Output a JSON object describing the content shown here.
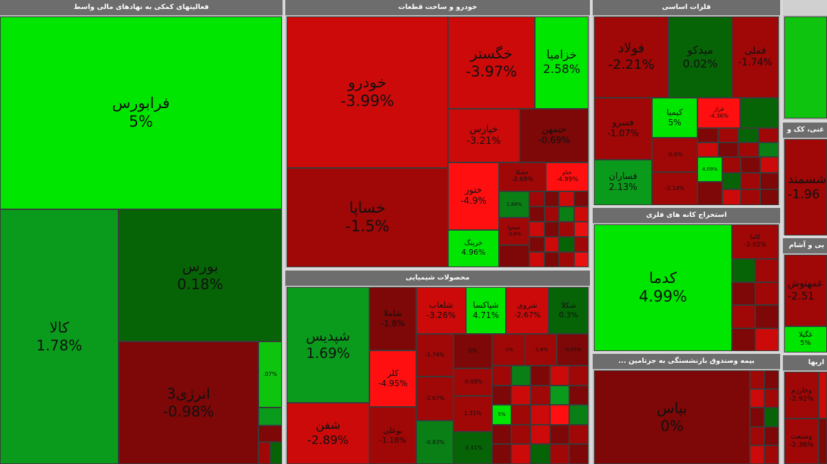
{
  "colors": {
    "gain_strong": "#00e600",
    "gain": "#0ec40e",
    "gain_dark": "#066407",
    "loss_strong": "#ff0f0f",
    "loss": "#cc0a0a",
    "loss_dark": "#7e0707",
    "header_bg": "#6d6d6d"
  },
  "sectors": {
    "finance": {
      "title": "فعالیتهای کمکی به نهادهای مالی واسط"
    },
    "auto": {
      "title": "خودرو و ساخت قطعات"
    },
    "metals": {
      "title": "فلزات اساسی"
    },
    "chemical": {
      "title": "محصولات شیمیایی"
    },
    "mining": {
      "title": "استخراج کانه های فلزی"
    },
    "insurance": {
      "title": "... بیمه وصندوق بازنشستگی به جزتامین"
    },
    "edge1": {
      "title": "غنی، کک و"
    },
    "edge2": {
      "title": "یی و آشام"
    },
    "edge3": {
      "title": "اریها"
    }
  },
  "tiles": {
    "faraborse": {
      "symbol": "فرابورس",
      "change": "5%"
    },
    "kala": {
      "symbol": "کالا",
      "change": "1.78%"
    },
    "bourse": {
      "symbol": "بورس",
      "change": "0.18%"
    },
    "energy3": {
      "symbol": "انرژی3",
      "change": "-0.98%"
    },
    "fin_small1": {
      "symbol": "",
      "change": ".07%"
    },
    "khodro": {
      "symbol": "خودرو",
      "change": "-3.99%"
    },
    "khesapa": {
      "symbol": "خساپا",
      "change": "-1.5%"
    },
    "khegostar": {
      "symbol": "خگستر",
      "change": "-3.97%"
    },
    "khazamia": {
      "symbol": "خزامیا",
      "change": "2.58%"
    },
    "khepars": {
      "symbol": "خپارس",
      "change": "-3.21%"
    },
    "khenmehr": {
      "symbol": "ختمهن",
      "change": "-0.69%"
    },
    "khavar": {
      "symbol": "ختور",
      "change": "-4.9%"
    },
    "kharing": {
      "symbol": "خرینگ",
      "change": "4.96%"
    },
    "auto_s1": {
      "symbol": "خشکا",
      "change": "-2.69%"
    },
    "auto_s2": {
      "symbol": "ختاو",
      "change": "-4.99%"
    },
    "auto_s3": {
      "symbol": "",
      "change": "1.88%"
    },
    "auto_s4": {
      "symbol": "خمحوا",
      "change": "-3.6%"
    },
    "foolad": {
      "symbol": "فولاد",
      "change": "-2.21%"
    },
    "midco": {
      "symbol": "میدکو",
      "change": "0.02%"
    },
    "fameli": {
      "symbol": "فملی",
      "change": "-1.74%"
    },
    "fesorvar": {
      "symbol": "فسرو",
      "change": "-1.07%"
    },
    "kimia": {
      "symbol": "کیمیا",
      "change": "5%"
    },
    "faraz": {
      "symbol": "فراز",
      "change": "-4.36%"
    },
    "fesaran": {
      "symbol": "فساران",
      "change": "2.13%"
    },
    "metal_s1": {
      "symbol": "",
      "change": "-0.6%"
    },
    "metal_s2": {
      "symbol": "",
      "change": "-2.14%"
    },
    "metal_s3": {
      "symbol": "",
      "change": "4.09%"
    },
    "shepdis": {
      "symbol": "شپدیس",
      "change": "1.69%"
    },
    "shafan": {
      "symbol": "شفن",
      "change": "-2.89%"
    },
    "shamla": {
      "symbol": "شاملا",
      "change": "-1.8%"
    },
    "shalab": {
      "symbol": "شلعاب",
      "change": "-3.26%"
    },
    "shepaksa": {
      "symbol": "شپاکسا",
      "change": "4.71%"
    },
    "sheroo": {
      "symbol": "شروی",
      "change": "-2.67%"
    },
    "shekla": {
      "symbol": "شکلا",
      "change": "0.3%"
    },
    "kalar": {
      "symbol": "کلر",
      "change": "-4.95%"
    },
    "buali": {
      "symbol": "بوعلی",
      "change": "-1.18%"
    },
    "chem_s1": {
      "symbol": "",
      "change": "-1.74%"
    },
    "chem_s2": {
      "symbol": "",
      "change": "0%"
    },
    "chem_s3": {
      "symbol": "",
      "change": "-0.09%"
    },
    "chem_s4": {
      "symbol": "",
      "change": "-2.67%"
    },
    "chem_s5": {
      "symbol": "",
      "change": "1.31%"
    },
    "chem_s6": {
      "symbol": "",
      "change": "-0.83%"
    },
    "chem_s7": {
      "symbol": "",
      "change": "-3.41%"
    },
    "chem_s8": {
      "symbol": "",
      "change": "-1%"
    },
    "chem_s9": {
      "symbol": "",
      "change": "-1.6%"
    },
    "chem_s10": {
      "symbol": "",
      "change": "-0.97%"
    },
    "chem_s11": {
      "symbol": "",
      "change": "5%"
    },
    "kadama": {
      "symbol": "کدما",
      "change": "4.99%"
    },
    "kaama": {
      "symbol": "کاما",
      "change": "-2.02%"
    },
    "bepas": {
      "symbol": "بپاس",
      "change": "0%"
    },
    "sheshtod": {
      "symbol": "شسمند",
      "change": "-1.96"
    },
    "ghmahoosh": {
      "symbol": "غمهنوش",
      "change": "-2.51"
    },
    "ghgila": {
      "symbol": "غگیلا",
      "change": "5%"
    },
    "vekharazm": {
      "symbol": "وخارزم",
      "change": "-2.92%"
    },
    "vesanat": {
      "symbol": "وصنعت",
      "change": "-2.36%"
    }
  }
}
